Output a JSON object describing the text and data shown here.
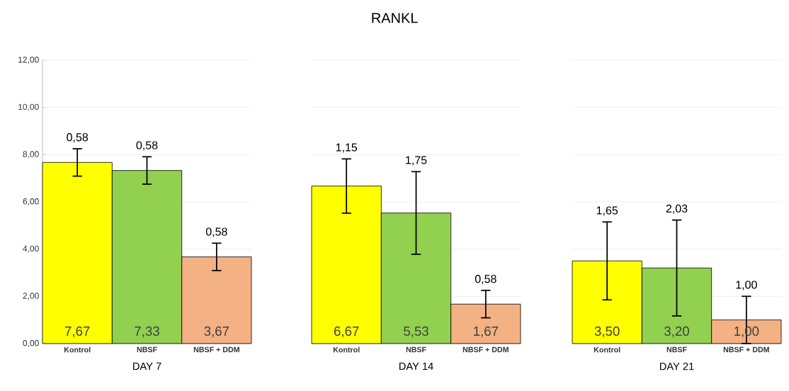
{
  "chart_data": [
    {
      "type": "bar",
      "xlabel": "DAY 7",
      "categories": [
        "Kontrol",
        "NBSF",
        "NBSF + DDM"
      ],
      "values": [
        7.67,
        7.33,
        3.67
      ],
      "colors": [
        "#ffff00",
        "#92d050",
        "#f4b183"
      ],
      "errors": [
        0.58,
        0.58,
        0.58
      ],
      "value_labels": [
        "7,67",
        "7,33",
        "3,67"
      ],
      "annotations": [
        {
          "text": "0,58",
          "x": "Kontrol",
          "y": 8.25
        },
        {
          "text": "0,58",
          "x": "NBSF",
          "y": 7.91
        },
        {
          "text": "0,58",
          "x": "NBSF + DDM",
          "y": 4.25
        }
      ],
      "ylim": [
        0,
        12
      ],
      "yticks": [
        {
          "value": 0,
          "label": "0,00"
        },
        {
          "value": 2,
          "label": "2,00"
        },
        {
          "value": 4,
          "label": "4,00"
        },
        {
          "value": 6,
          "label": "6,00"
        },
        {
          "value": 8,
          "label": "8,00"
        },
        {
          "value": 10,
          "label": "10,00"
        },
        {
          "value": 12,
          "label": "12,00"
        }
      ],
      "grid": "y"
    },
    {
      "type": "bar",
      "title": "RANKL",
      "xlabel": "DAY 14",
      "categories": [
        "Kontrol",
        "NBSF",
        "NBSF + DDM"
      ],
      "values": [
        6.67,
        5.53,
        1.67
      ],
      "colors": [
        "#ffff00",
        "#92d050",
        "#f4b183"
      ],
      "errors": [
        1.15,
        1.75,
        0.58
      ],
      "value_labels": [
        "6,67",
        "5,53",
        "1,67"
      ],
      "annotations": [
        {
          "text": "1,15",
          "x": "Kontrol",
          "y": 7.82
        },
        {
          "text": "1,75",
          "x": "NBSF",
          "y": 7.28
        },
        {
          "text": "0,58",
          "x": "NBSF + DDM",
          "y": 2.25
        }
      ],
      "ylim": [
        0,
        12
      ],
      "yticks": [
        0,
        2,
        4,
        6,
        8,
        10,
        12
      ],
      "grid": "y",
      "tick_labels": "x"
    },
    {
      "type": "bar",
      "xlabel": "DAY 21",
      "categories": [
        "Kontrol",
        "NBSF",
        "NBSF + DDM"
      ],
      "values": [
        3.5,
        3.2,
        1.0
      ],
      "colors": [
        "#ffff00",
        "#92d050",
        "#f4b183"
      ],
      "errors": [
        1.65,
        2.03,
        1.0
      ],
      "value_labels": [
        "3,50",
        "3,20",
        "1,00"
      ],
      "annotations": [
        {
          "text": "1,65",
          "x": "Kontrol",
          "y": 5.15
        },
        {
          "text": "2,03",
          "x": "NBSF",
          "y": 5.23
        },
        {
          "text": "1,00",
          "x": "NBSF + DDM",
          "y": 2.0
        }
      ],
      "ylim": [
        0,
        12
      ],
      "yticks": [
        0,
        2,
        4,
        6,
        8,
        10,
        12
      ],
      "grid": "y",
      "tick_labels": "x"
    }
  ]
}
